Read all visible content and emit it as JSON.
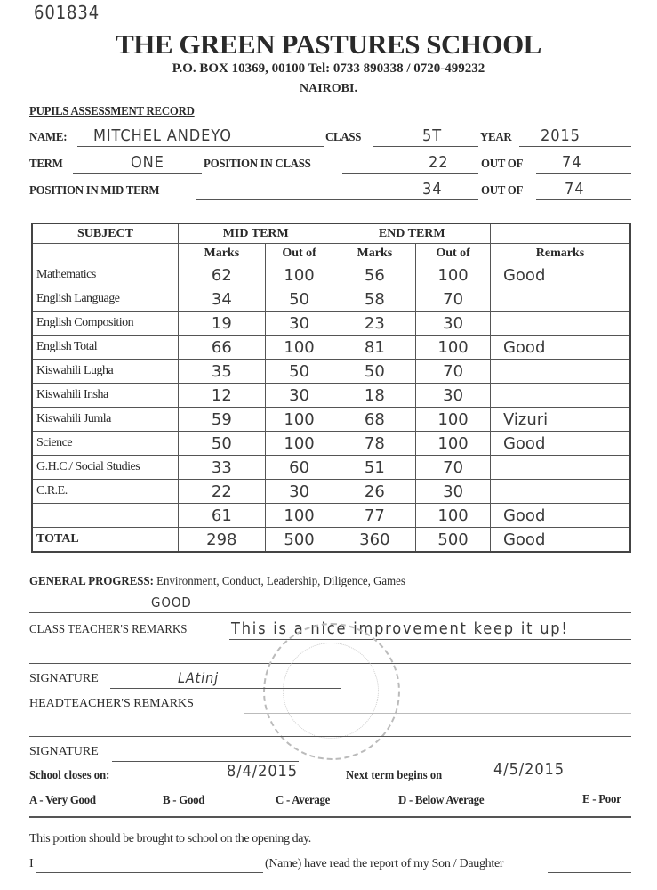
{
  "ref_number": "601834",
  "school": {
    "name": "THE GREEN PASTURES SCHOOL",
    "address": "P.O. BOX 10369, 00100  Tel: 0733 890338 / 0720-499232",
    "city": "NAIROBI."
  },
  "record_title": "PUPILS ASSESSMENT RECORD",
  "info": {
    "name_label": "NAME:",
    "name": "MITCHEL   ANDEYO",
    "class_label": "CLASS",
    "class": "5T",
    "year_label": "YEAR",
    "year": "2015",
    "term_label": "TERM",
    "term": "ONE",
    "position_label": "POSITION IN CLASS",
    "position": "22",
    "out_of_label": "OUT OF",
    "out_of": "74",
    "mid_position_label": "POSITION IN MID TERM",
    "mid_position": "34",
    "mid_out_of": "74"
  },
  "table": {
    "headers": {
      "subject": "SUBJECT",
      "mid_term": "MID TERM",
      "end_term": "END TERM",
      "marks": "Marks",
      "out_of": "Out of",
      "remarks": "Remarks"
    },
    "rows": [
      {
        "subject": "Mathematics",
        "mid_marks": "62",
        "mid_out": "100",
        "end_marks": "56",
        "end_out": "100",
        "remark": "Good"
      },
      {
        "subject": "English Language",
        "mid_marks": "34",
        "mid_out": "50",
        "end_marks": "58",
        "end_out": "70",
        "remark": ""
      },
      {
        "subject": "English Composition",
        "mid_marks": "19",
        "mid_out": "30",
        "end_marks": "23",
        "end_out": "30",
        "remark": ""
      },
      {
        "subject": "English Total",
        "mid_marks": "66",
        "mid_out": "100",
        "end_marks": "81",
        "end_out": "100",
        "remark": "Good"
      },
      {
        "subject": "Kiswahili Lugha",
        "mid_marks": "35",
        "mid_out": "50",
        "end_marks": "50",
        "end_out": "70",
        "remark": ""
      },
      {
        "subject": "Kiswahili Insha",
        "mid_marks": "12",
        "mid_out": "30",
        "end_marks": "18",
        "end_out": "30",
        "remark": ""
      },
      {
        "subject": "Kiswahili Jumla",
        "mid_marks": "59",
        "mid_out": "100",
        "end_marks": "68",
        "end_out": "100",
        "remark": "Vizuri"
      },
      {
        "subject": "Science",
        "mid_marks": "50",
        "mid_out": "100",
        "end_marks": "78",
        "end_out": "100",
        "remark": "Good"
      },
      {
        "subject": "G.H.C./ Social Studies",
        "mid_marks": "33",
        "mid_out": "60",
        "end_marks": "51",
        "end_out": "70",
        "remark": ""
      },
      {
        "subject": "C.R.E.",
        "mid_marks": "22",
        "mid_out": "30",
        "end_marks": "26",
        "end_out": "30",
        "remark": ""
      },
      {
        "subject": "",
        "mid_marks": "61",
        "mid_out": "100",
        "end_marks": "77",
        "end_out": "100",
        "remark": "Good"
      }
    ],
    "total": {
      "subject": "TOTAL",
      "mid_marks": "298",
      "mid_out": "500",
      "end_marks": "360",
      "end_out": "500",
      "remark": "Good"
    }
  },
  "general_progress": {
    "label": "GENERAL PROGRESS:",
    "items": "Environment, Conduct, Leadership, Diligence, Games",
    "value": "GOOD"
  },
  "class_teacher": {
    "label": "CLASS TEACHER'S REMARKS",
    "value": "This is a nice improvement keep it up!"
  },
  "signature_label": "SIGNATURE",
  "signature_value": "LAtinj",
  "headteacher": {
    "label": "HEADTEACHER'S REMARKS",
    "value": ""
  },
  "signature2_label": "SIGNATURE",
  "dates": {
    "closes_label": "School closes on:",
    "closes": "8/4/2015",
    "next_label": "Next term begins on",
    "next": "4/5/2015"
  },
  "grades": [
    "A - Very Good",
    "B - Good",
    "C - Average",
    "D - Below Average",
    "E - Poor"
  ],
  "slip": {
    "note": "This portion should be brought to school on the opening day.",
    "i_label": "I",
    "name_text": "(Name) have read the report of my Son / Daughter"
  }
}
